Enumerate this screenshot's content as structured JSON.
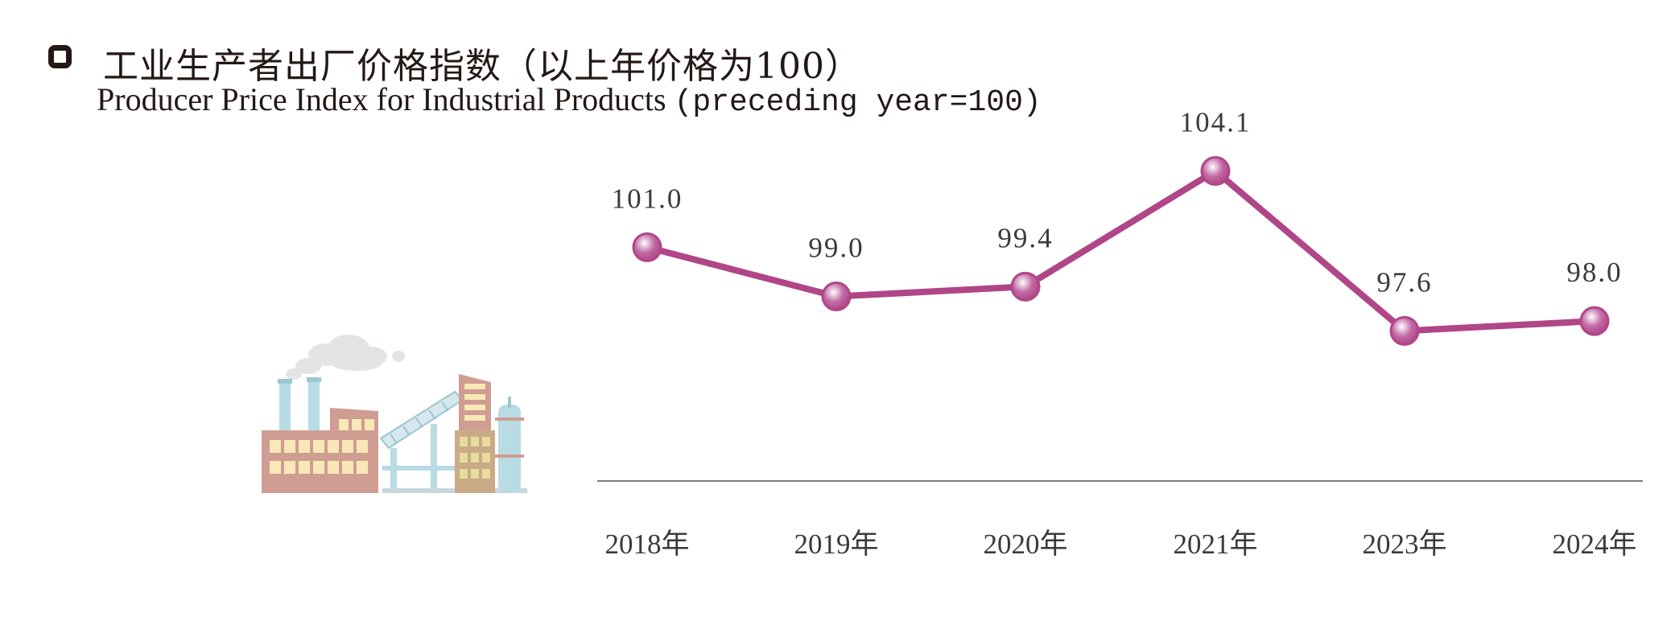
{
  "header": {
    "title_cn": "工业生产者出厂价格指数（以上年价格为100）",
    "title_en_main": "Producer Price Index for Industrial Products ",
    "title_en_paren": "(preceding year=100)"
  },
  "chart_data": {
    "type": "line",
    "categories": [
      "2018年",
      "2019年",
      "2020年",
      "2021年",
      "2023年",
      "2024年"
    ],
    "values": [
      101.0,
      99.0,
      99.4,
      104.1,
      97.6,
      98.0
    ],
    "value_labels": [
      "101.0",
      "99.0",
      "99.4",
      "104.1",
      "97.6",
      "98.0"
    ],
    "ylim": [
      91.5,
      105.0
    ],
    "grid": false,
    "legend": "none",
    "line_color": "#b04687",
    "marker_color": "#c26aa6",
    "baseline_color": "#555555"
  },
  "illustration": {
    "icon": "factory-icon"
  }
}
